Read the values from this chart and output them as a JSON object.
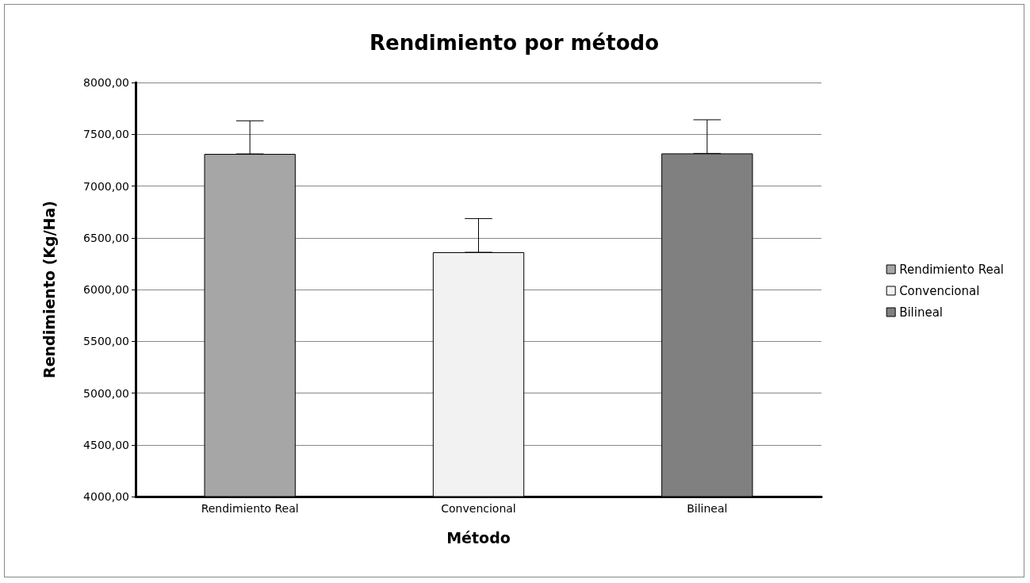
{
  "chart_data": {
    "type": "bar",
    "title": "Rendimiento por método",
    "xlabel": "Método",
    "ylabel": "Rendimiento (Kg/Ha)",
    "categories": [
      "Rendimiento Real",
      "Convencional",
      "Bilineal"
    ],
    "series": [
      {
        "name": "Rendimiento Real",
        "color": "#a6a6a6",
        "values": [
          7310,
          null,
          null
        ],
        "errors": [
          [
            7310,
            7630
          ],
          null,
          null
        ]
      },
      {
        "name": "Convencional",
        "color": "#f2f2f2",
        "values": [
          null,
          6360,
          null
        ],
        "errors": [
          null,
          [
            6360,
            6685
          ],
          null
        ]
      },
      {
        "name": "Bilineal",
        "color": "#808080",
        "values": [
          null,
          null,
          7315
        ],
        "errors": [
          null,
          null,
          [
            7315,
            7640
          ]
        ]
      }
    ],
    "ylim": [
      4000,
      8000
    ],
    "yticks": [
      {
        "value": 4000,
        "label": "4000,00"
      },
      {
        "value": 4500,
        "label": "4500,00"
      },
      {
        "value": 5000,
        "label": "5000,00"
      },
      {
        "value": 5500,
        "label": "5500,00"
      },
      {
        "value": 6000,
        "label": "6000,00"
      },
      {
        "value": 6500,
        "label": "6500,00"
      },
      {
        "value": 7000,
        "label": "7000,00"
      },
      {
        "value": 7500,
        "label": "7500,00"
      },
      {
        "value": 8000,
        "label": "8000,00"
      }
    ],
    "grid": "y",
    "legend": "right"
  }
}
